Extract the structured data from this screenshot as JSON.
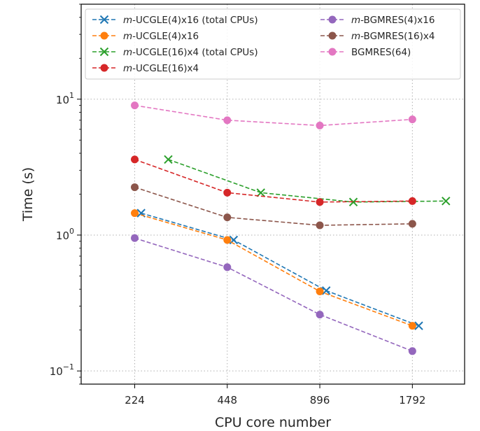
{
  "chart_data": {
    "type": "line",
    "xlabel": "CPU core number",
    "ylabel": "Time (s)",
    "x_scale": "log2",
    "y_scale": "log10",
    "xticks": [
      224,
      448,
      896,
      1792
    ],
    "yticks": [
      {
        "value": 0.1,
        "base": "10",
        "exp": "−1"
      },
      {
        "value": 1,
        "base": "10",
        "exp": "0"
      },
      {
        "value": 10,
        "base": "10",
        "exp": "1"
      }
    ],
    "xlim": [
      150,
      2650
    ],
    "ylim": [
      0.08,
      50
    ],
    "grid": true,
    "legend_position": "top",
    "series": [
      {
        "name_prefix": "m",
        "name_rest": "-UCGLE(4)x16 (total CPUs)",
        "color": "#1f77b4",
        "marker": "x",
        "x": [
          235,
          470,
          940,
          1880
        ],
        "y": [
          1.45,
          0.92,
          0.39,
          0.215
        ]
      },
      {
        "name_prefix": "m",
        "name_rest": "-UCGLE(4)x16",
        "color": "#ff7f0e",
        "marker": "o",
        "x": [
          224,
          448,
          896,
          1792
        ],
        "y": [
          1.45,
          0.92,
          0.385,
          0.215
        ]
      },
      {
        "name_prefix": "m",
        "name_rest": "-UCGLE(16)x4 (total CPUs)",
        "color": "#2ca02c",
        "marker": "x",
        "x": [
          288,
          576,
          1152,
          2304
        ],
        "y": [
          3.6,
          2.05,
          1.75,
          1.78
        ]
      },
      {
        "name_prefix": "m",
        "name_rest": "-UCGLE(16)x4",
        "color": "#d62728",
        "marker": "o",
        "x": [
          224,
          448,
          896,
          1792
        ],
        "y": [
          3.6,
          2.05,
          1.75,
          1.78
        ]
      },
      {
        "name_prefix": "m",
        "name_rest": "-BGMRES(4)x16",
        "color": "#9467bd",
        "marker": "o",
        "x": [
          224,
          448,
          896,
          1792
        ],
        "y": [
          0.95,
          0.58,
          0.26,
          0.14
        ]
      },
      {
        "name_prefix": "m",
        "name_rest": "-BGMRES(16)x4",
        "color": "#8c564b",
        "marker": "o",
        "x": [
          224,
          448,
          896,
          1792
        ],
        "y": [
          2.25,
          1.35,
          1.18,
          1.21
        ]
      },
      {
        "name_prefix": "",
        "name_rest": "BGMRES(64)",
        "color": "#e377c2",
        "marker": "o",
        "x": [
          224,
          448,
          896,
          1792
        ],
        "y": [
          9.0,
          7.0,
          6.4,
          7.1
        ]
      }
    ]
  }
}
